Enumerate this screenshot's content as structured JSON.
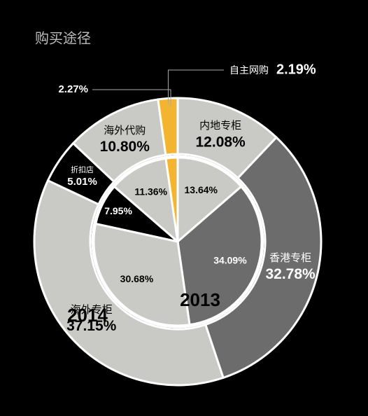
{
  "chart_data": {
    "type": "donut",
    "title": "购买途径",
    "categories": [
      "内地专柜",
      "香港专柜",
      "海外专柜",
      "折扣店",
      "海外代购",
      "自主网购"
    ],
    "colors": [
      "#c9c9c5",
      "#6c6c6c",
      "#c9c9c5",
      "#000000",
      "#c9c9c5",
      "#f2b431"
    ],
    "series": [
      {
        "name": "2014",
        "values": [
          12.08,
          32.78,
          37.15,
          5.01,
          10.8,
          2.19
        ],
        "value_labels": [
          "12.08%",
          "32.78%",
          "37.15%",
          "5.01%",
          "10.80%",
          "2.19%"
        ]
      },
      {
        "name": "2013",
        "values": [
          13.64,
          34.09,
          30.68,
          7.95,
          11.36,
          2.27
        ],
        "value_labels": [
          "13.64%",
          "34.09%",
          "30.68%",
          "7.95%",
          "11.36%",
          "2.27%"
        ]
      }
    ]
  }
}
